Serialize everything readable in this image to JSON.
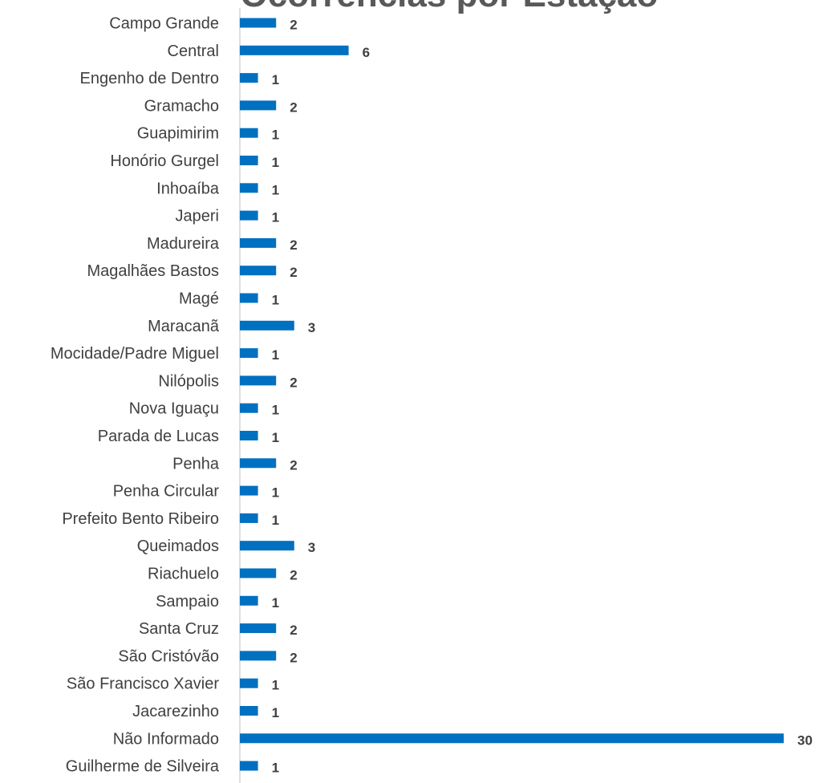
{
  "chart_data": {
    "type": "bar",
    "orientation": "horizontal",
    "title": "Ocorrências por Estação",
    "categories": [
      "Campo Grande",
      "Central",
      "Engenho de Dentro",
      "Gramacho",
      "Guapimirim",
      "Honório Gurgel",
      "Inhoaíba",
      "Japeri",
      "Madureira",
      "Magalhães Bastos",
      "Magé",
      "Maracanã",
      "Mocidade/Padre Miguel",
      "Nilópolis",
      "Nova Iguaçu",
      "Parada de Lucas",
      "Penha",
      "Penha Circular",
      "Prefeito Bento Ribeiro",
      "Queimados",
      "Riachuelo",
      "Sampaio",
      "Santa Cruz",
      "São Cristóvão",
      "São Francisco Xavier",
      "Jacarezinho",
      "Não Informado",
      "Guilherme de Silveira"
    ],
    "values": [
      2,
      6,
      1,
      2,
      1,
      1,
      1,
      1,
      2,
      2,
      1,
      3,
      1,
      2,
      1,
      1,
      2,
      1,
      1,
      3,
      2,
      1,
      2,
      2,
      1,
      1,
      30,
      1
    ],
    "xlim": [
      0,
      30
    ],
    "bar_color": "#0070C0",
    "grid": false,
    "data_labels": true
  }
}
